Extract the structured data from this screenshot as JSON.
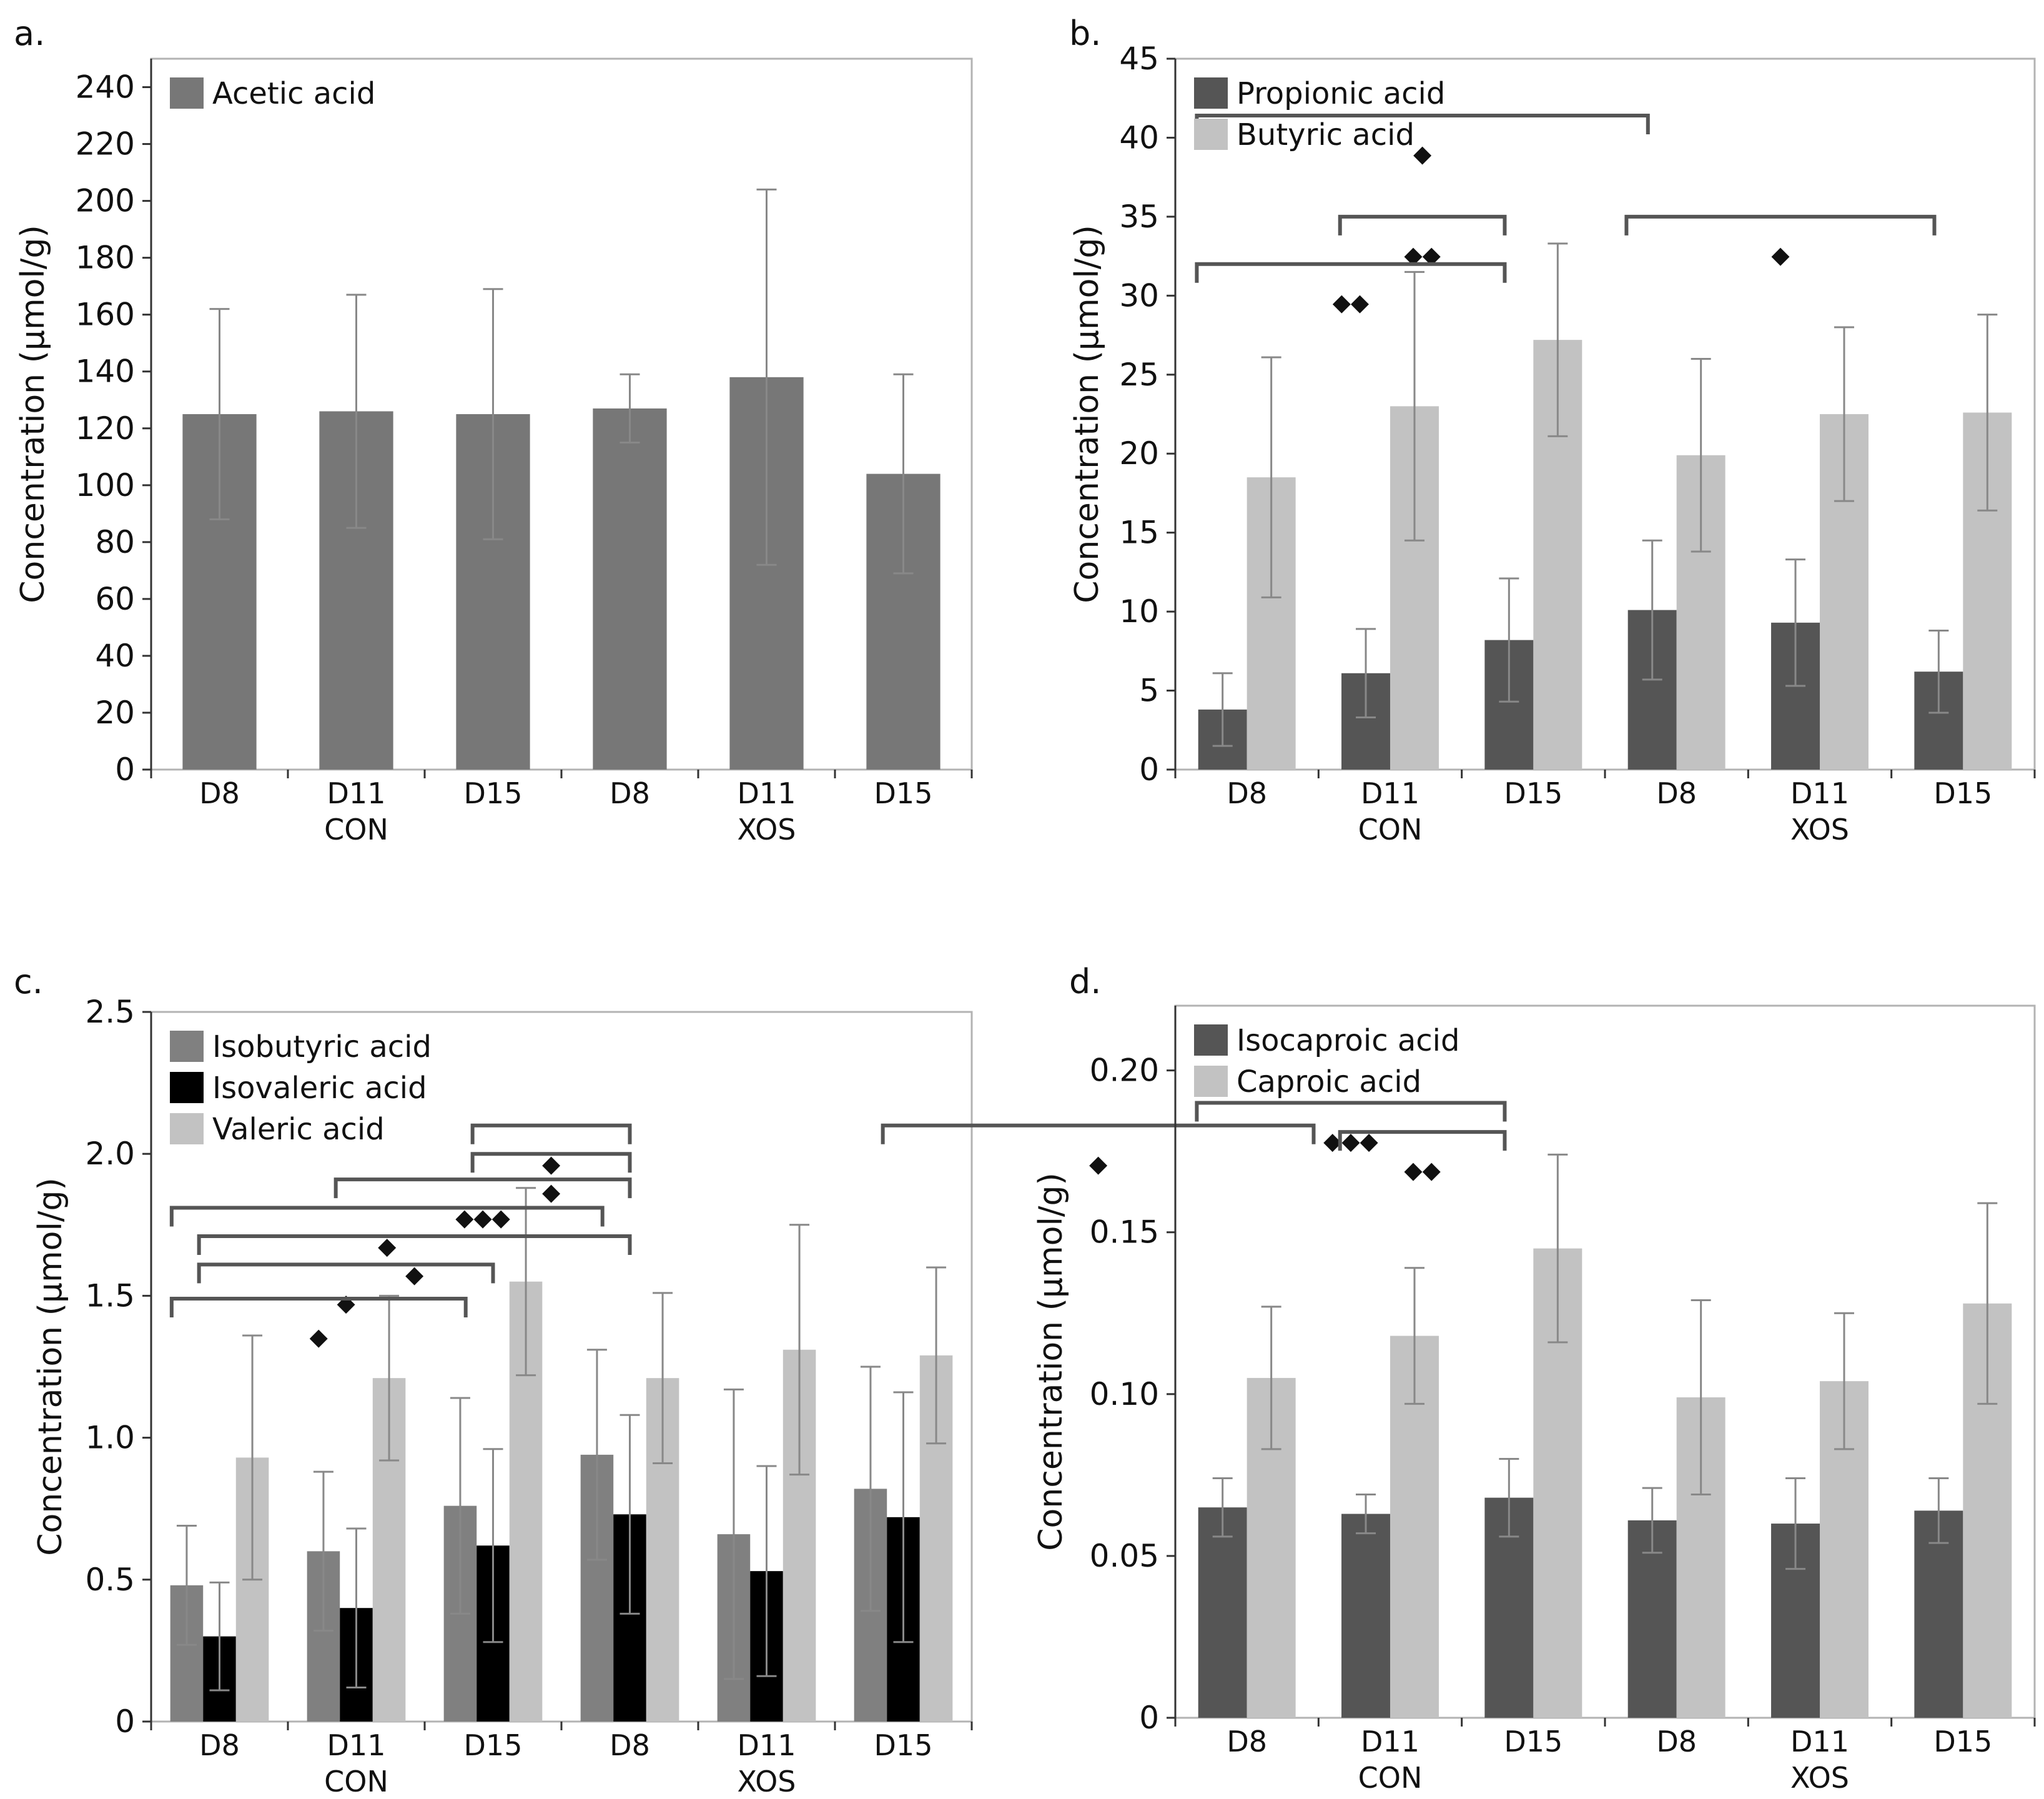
{
  "chart_data": [
    {
      "panel": "a.",
      "type": "bar",
      "ylabel": "Concentration (µmol/g)",
      "ylim": [
        0,
        250
      ],
      "yticks": [
        0,
        20,
        40,
        60,
        80,
        100,
        120,
        140,
        160,
        180,
        200,
        220,
        240
      ],
      "categories": [
        "D8",
        "D11",
        "D15",
        "D8",
        "D11",
        "D15"
      ],
      "groups": [
        "CON",
        "XOS"
      ],
      "legend_position": "top-left",
      "series": [
        {
          "name": "Acetic acid",
          "color": "#777777",
          "values": [
            125,
            126,
            125,
            127,
            138,
            104
          ],
          "errors": [
            37,
            41,
            44,
            12,
            66,
            35
          ]
        }
      ],
      "significance": []
    },
    {
      "panel": "b.",
      "type": "bar",
      "ylabel": "Concentration (µmol/g)",
      "ylim": [
        0,
        45
      ],
      "yticks": [
        0,
        5,
        10,
        15,
        20,
        25,
        30,
        35,
        40,
        45
      ],
      "categories": [
        "D8",
        "D11",
        "D15",
        "D8",
        "D11",
        "D15"
      ],
      "groups": [
        "CON",
        "XOS"
      ],
      "legend_position": "top-left",
      "series": [
        {
          "name": "Propionic acid",
          "color": "#555555",
          "values": [
            3.8,
            6.1,
            8.2,
            10.1,
            9.3,
            6.2
          ],
          "errors": [
            2.3,
            2.8,
            3.9,
            4.4,
            4.0,
            2.6
          ]
        },
        {
          "name": "Butyric acid",
          "color": "#c2c2c2",
          "values": [
            18.5,
            23.0,
            27.2,
            19.9,
            22.5,
            22.6
          ],
          "errors": [
            7.6,
            8.5,
            6.1,
            6.1,
            5.5,
            6.2
          ]
        }
      ],
      "significance": [
        {
          "from": 0,
          "to": 3,
          "stars": "◆",
          "level": 41.4
        },
        {
          "from": 1,
          "to": 2,
          "stars": "◆◆",
          "level": 35.0
        },
        {
          "from": 3,
          "to": 5,
          "stars": "◆",
          "level": 35.0
        },
        {
          "from": 0,
          "to": 2,
          "stars": "◆◆",
          "level": 32.0
        }
      ]
    },
    {
      "panel": "c.",
      "type": "bar",
      "ylabel": "Concentration (µmol/g)",
      "ylim": [
        0,
        2.5
      ],
      "yticks": [
        0,
        0.5,
        1.0,
        1.5,
        2.0,
        2.5
      ],
      "ytick_labels": [
        "0",
        "0.5",
        "1.0",
        "1.5",
        "2.0",
        "2.5"
      ],
      "categories": [
        "D8",
        "D11",
        "D15",
        "D8",
        "D11",
        "D15"
      ],
      "groups": [
        "CON",
        "XOS"
      ],
      "legend_position": "top-left",
      "series": [
        {
          "name": "Isobutyric acid",
          "color": "#808080",
          "values": [
            0.48,
            0.6,
            0.76,
            0.94,
            0.66,
            0.82
          ],
          "errors": [
            0.21,
            0.28,
            0.38,
            0.37,
            0.51,
            0.43
          ]
        },
        {
          "name": "Isovaleric acid",
          "color": "#000000",
          "values": [
            0.3,
            0.4,
            0.62,
            0.73,
            0.53,
            0.72
          ],
          "errors": [
            0.19,
            0.28,
            0.34,
            0.35,
            0.37,
            0.44
          ]
        },
        {
          "name": "Valeric acid",
          "color": "#c2c2c2",
          "values": [
            0.93,
            1.21,
            1.55,
            1.21,
            1.31,
            1.29
          ],
          "errors": [
            0.43,
            0.29,
            0.33,
            0.3,
            0.44,
            0.31
          ]
        }
      ],
      "significance": [
        {
          "from": 2.2,
          "to": 3.2,
          "stars": "◆",
          "level": 2.1
        },
        {
          "from": 5.2,
          "to": 8.2,
          "stars": "◆",
          "level": 2.1
        },
        {
          "from": 2.2,
          "to": 3.2,
          "stars": "◆",
          "level": 2.0
        },
        {
          "from": 1.2,
          "to": 3.2,
          "stars": "◆◆◆",
          "level": 1.91
        },
        {
          "from": 0,
          "to": 3.0,
          "stars": "◆",
          "level": 1.81
        },
        {
          "from": 0.2,
          "to": 3.2,
          "stars": "◆",
          "level": 1.71
        },
        {
          "from": 0.2,
          "to": 2.2,
          "stars": "◆",
          "level": 1.61
        },
        {
          "from": 0,
          "to": 2.0,
          "stars": "◆",
          "level": 1.49
        }
      ]
    },
    {
      "panel": "d.",
      "type": "bar",
      "ylabel": "Concentration (µmol/g)",
      "ylim": [
        0,
        0.22
      ],
      "yticks": [
        0,
        0.05,
        0.1,
        0.15,
        0.2
      ],
      "ytick_labels": [
        "0",
        "0.05",
        "0.10",
        "0.15",
        "0.20"
      ],
      "categories": [
        "D8",
        "D11",
        "D15",
        "D8",
        "D11",
        "D15"
      ],
      "groups": [
        "CON",
        "XOS"
      ],
      "legend_position": "top-left",
      "series": [
        {
          "name": "Isocaproic acid",
          "color": "#555555",
          "values": [
            0.065,
            0.063,
            0.068,
            0.061,
            0.06,
            0.064
          ],
          "errors": [
            0.009,
            0.006,
            0.012,
            0.01,
            0.014,
            0.01
          ]
        },
        {
          "name": "Caproic acid",
          "color": "#c2c2c2",
          "values": [
            0.105,
            0.118,
            0.145,
            0.099,
            0.104,
            0.128
          ],
          "errors": [
            0.022,
            0.021,
            0.029,
            0.03,
            0.021,
            0.031
          ]
        }
      ],
      "significance": [
        {
          "from": 0,
          "to": 2,
          "stars": "◆◆◆",
          "level": 0.19
        },
        {
          "from": 1,
          "to": 2,
          "stars": "◆◆",
          "level": 0.181
        }
      ]
    }
  ]
}
